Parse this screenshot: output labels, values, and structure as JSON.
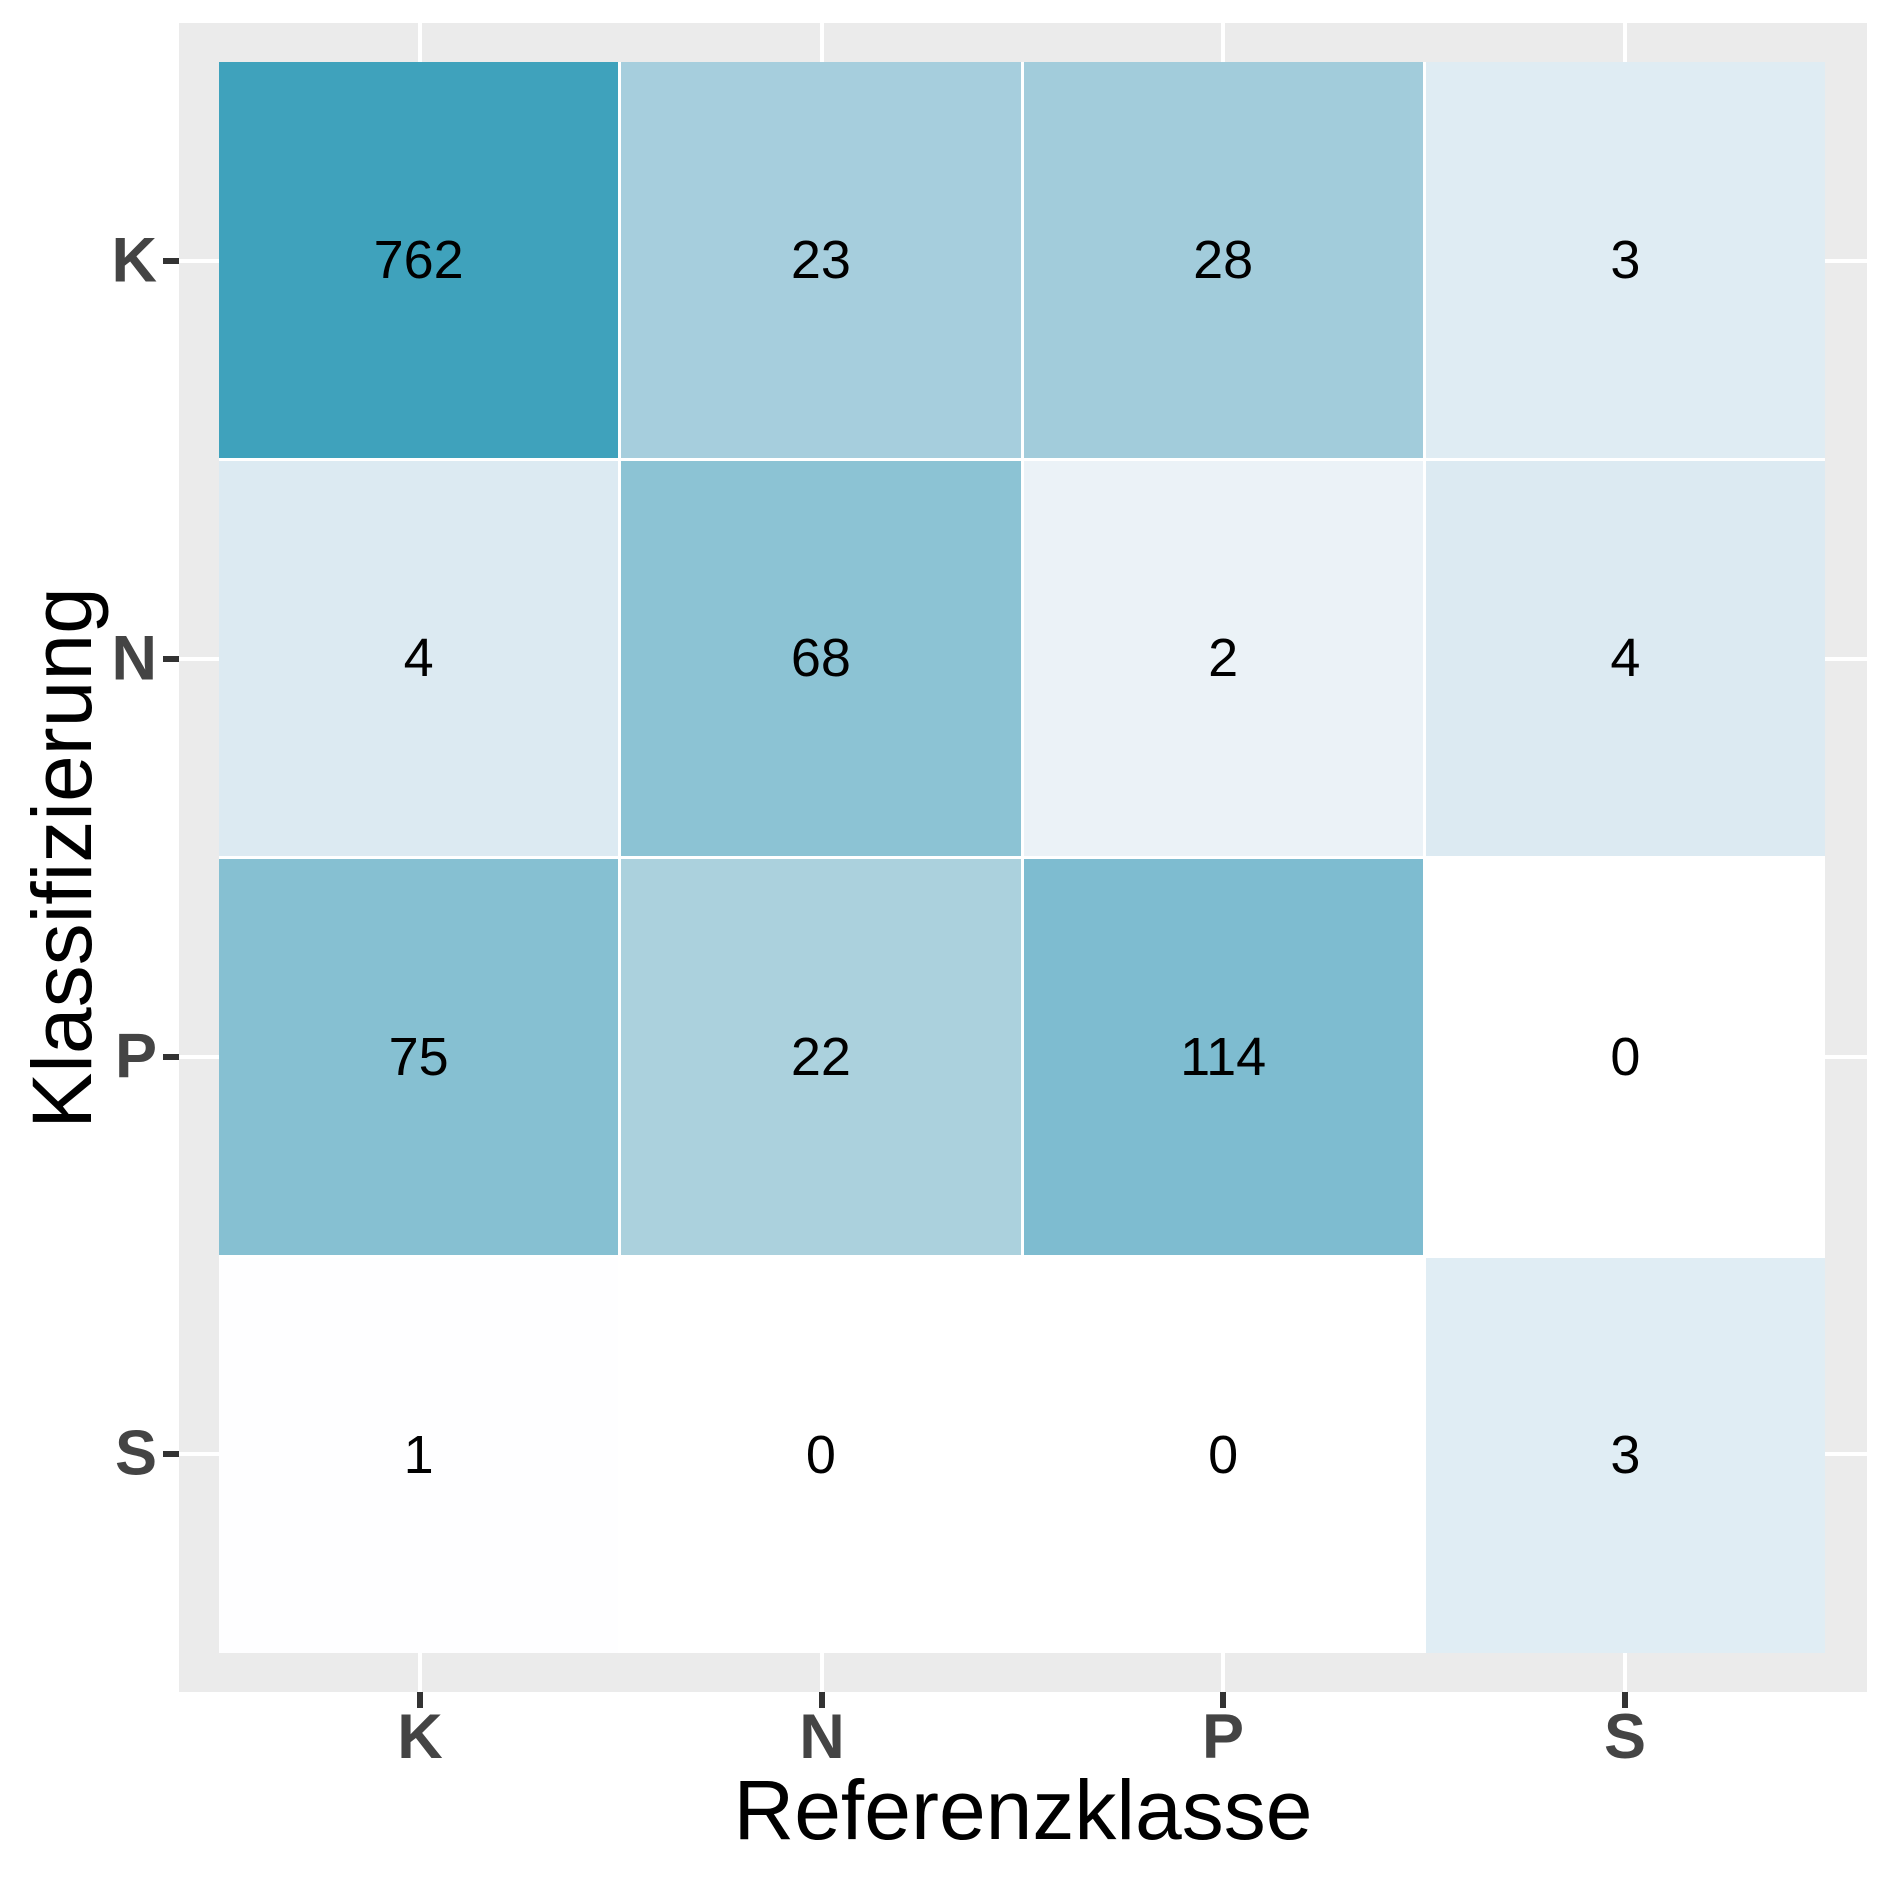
{
  "chart_data": {
    "type": "heatmap",
    "title": "",
    "xlabel": "Referenzklasse",
    "ylabel": "Klassifizierung",
    "x_categories": [
      "K",
      "N",
      "P",
      "S"
    ],
    "y_categories": [
      "K",
      "N",
      "P",
      "S"
    ],
    "rows": [
      {
        "y": "K",
        "values": [
          762,
          23,
          28,
          3
        ],
        "colors": [
          "#3FA2BC",
          "#A6CEDD",
          "#A2CCDB",
          "#DFECF3"
        ]
      },
      {
        "y": "N",
        "values": [
          4,
          68,
          2,
          4
        ],
        "colors": [
          "#DCEAF2",
          "#8CC3D4",
          "#EBF2F7",
          "#DCEAF2"
        ]
      },
      {
        "y": "P",
        "values": [
          75,
          22,
          114,
          0
        ],
        "colors": [
          "#86C0D2",
          "#ABD1DD",
          "#7EBCD0",
          "#FFFFFF"
        ]
      },
      {
        "y": "S",
        "values": [
          1,
          0,
          0,
          3
        ],
        "colors": [
          "#FEFEFF",
          "#FFFFFF",
          "#FFFFFF",
          "#E0EDF4"
        ]
      }
    ],
    "legend_position": "none",
    "grid": "major-on",
    "style": {
      "panel_background": "#EBEBEB",
      "gridline_color": "#FFFFFF",
      "tile_border_color": "#FFFFFF",
      "tick_mark_color": "#333333",
      "tick_label_color": "#444444",
      "axis_title_color": "#000000",
      "value_text_color": "#000000",
      "fill_scale_low": "#FFFFFF",
      "fill_scale_high": "#3FA2BC"
    }
  }
}
